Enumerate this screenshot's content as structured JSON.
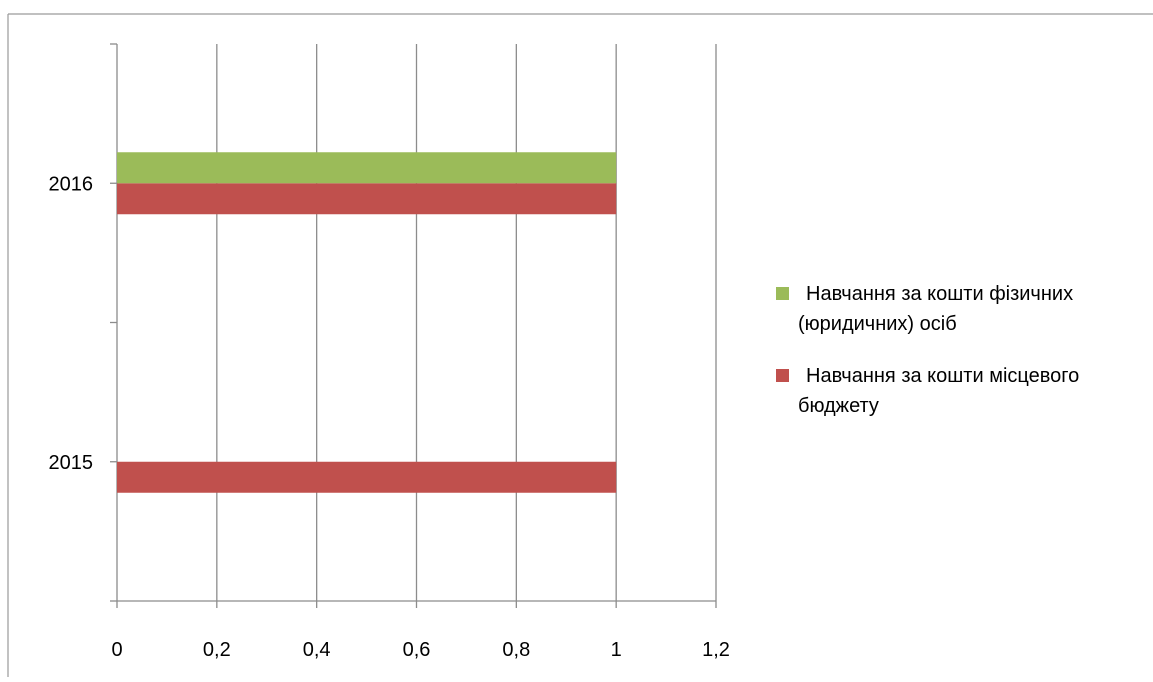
{
  "chart_data": {
    "type": "bar",
    "orientation": "horizontal",
    "title": "",
    "xlabel": "",
    "ylabel": "",
    "categories": [
      "2015",
      "2016"
    ],
    "xlim": [
      0,
      1.2
    ],
    "x_ticks": [
      "0",
      "0,2",
      "0,4",
      "0,6",
      "0,8",
      "1",
      "1,2"
    ],
    "grid": true,
    "legend_position": "right",
    "series": [
      {
        "name": "Навчання за кошти місцевого бюджету",
        "color": "#c0504d",
        "values": [
          1,
          1
        ]
      },
      {
        "name": "Навчання за кошти фізичних (юридичних) осіб",
        "color": "#9bbb59",
        "values": [
          0,
          1
        ]
      }
    ],
    "legend": {
      "entries": [
        {
          "lines": [
            "Навчання за кошти фізичних",
            "(юридичних) осіб"
          ],
          "color": "#9bbb59"
        },
        {
          "lines": [
            "Навчання за кошти місцевого",
            "бюджету"
          ],
          "color": "#c0504d"
        }
      ]
    }
  }
}
